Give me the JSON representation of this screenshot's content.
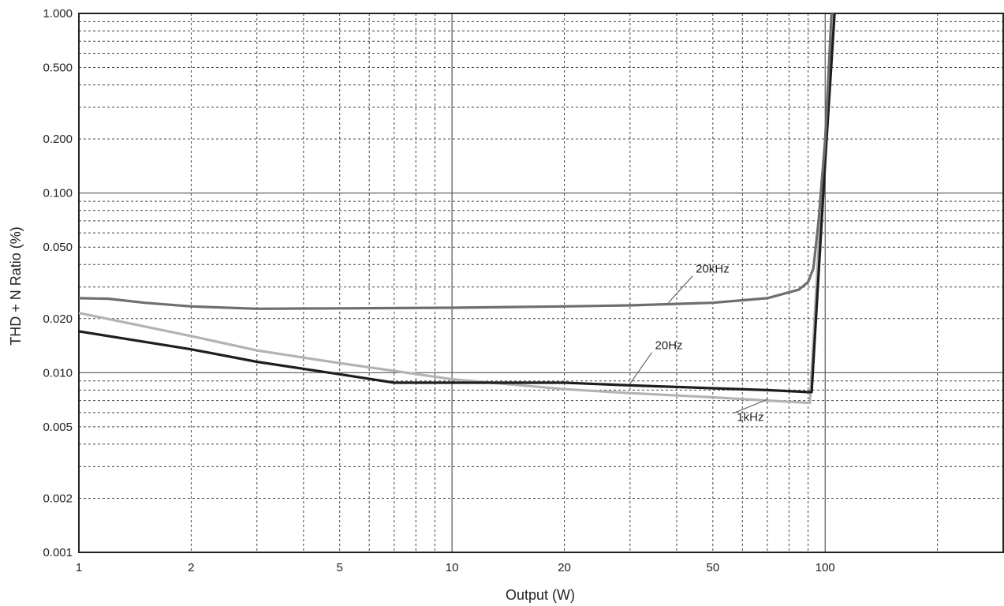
{
  "chart_data": {
    "type": "line",
    "title": "",
    "xlabel": "Output (W)",
    "ylabel": "THD + N Ratio (%)",
    "x_scale": "log",
    "y_scale": "log",
    "xlim": [
      1,
      300
    ],
    "ylim": [
      0.001,
      1
    ],
    "grid": true,
    "x_tick_labels": [
      "1",
      "2",
      "5",
      "10",
      "20",
      "50",
      "100"
    ],
    "x_tick_values": [
      1,
      2,
      5,
      10,
      20,
      50,
      100
    ],
    "y_tick_labels": [
      "0.001",
      "0.002",
      "0.005",
      "0.010",
      "0.020",
      "0.050",
      "0.100",
      "0.200",
      "0.500",
      "1.000"
    ],
    "y_tick_values": [
      0.001,
      0.002,
      0.005,
      0.01,
      0.02,
      0.05,
      0.1,
      0.2,
      0.5,
      1
    ],
    "series": [
      {
        "name": "20kHz",
        "color": "#6e6e6e",
        "points": [
          [
            1,
            0.026
          ],
          [
            1.2,
            0.0258
          ],
          [
            1.5,
            0.0245
          ],
          [
            2,
            0.0234
          ],
          [
            3,
            0.0227
          ],
          [
            5,
            0.0228
          ],
          [
            10,
            0.023
          ],
          [
            20,
            0.0234
          ],
          [
            30,
            0.0237
          ],
          [
            50,
            0.0245
          ],
          [
            70,
            0.026
          ],
          [
            85,
            0.029
          ],
          [
            90,
            0.032
          ],
          [
            93,
            0.038
          ],
          [
            96,
            0.07
          ],
          [
            100,
            0.2
          ],
          [
            104,
            1.0
          ]
        ],
        "label_at": [
          45,
          0.036
        ]
      },
      {
        "name": "20Hz",
        "color": "#1e1e1e",
        "points": [
          [
            1,
            0.017
          ],
          [
            2,
            0.0135
          ],
          [
            3,
            0.0115
          ],
          [
            5,
            0.0098
          ],
          [
            7,
            0.0088
          ],
          [
            10,
            0.0088
          ],
          [
            20,
            0.0088
          ],
          [
            30,
            0.0085
          ],
          [
            50,
            0.0082
          ],
          [
            70,
            0.008
          ],
          [
            90,
            0.0078
          ],
          [
            92,
            0.0078
          ],
          [
            100,
            0.15
          ],
          [
            106,
            1.0
          ]
        ],
        "label_at": [
          35,
          0.0135
        ]
      },
      {
        "name": "1kHz",
        "color": "#b3b3b3",
        "points": [
          [
            1,
            0.0215
          ],
          [
            2,
            0.016
          ],
          [
            3,
            0.0133
          ],
          [
            5,
            0.0113
          ],
          [
            10,
            0.0092
          ],
          [
            20,
            0.0081
          ],
          [
            30,
            0.0077
          ],
          [
            50,
            0.0073
          ],
          [
            70,
            0.007
          ],
          [
            90,
            0.0068
          ],
          [
            91,
            0.0068
          ],
          [
            96,
            0.05
          ],
          [
            100,
            0.2
          ],
          [
            105,
            1.0
          ]
        ],
        "label_at": [
          58,
          0.0062
        ]
      }
    ]
  }
}
